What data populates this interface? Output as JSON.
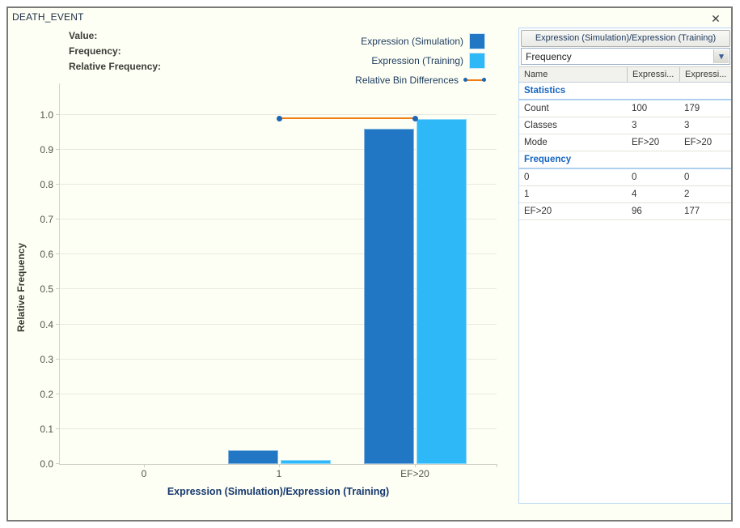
{
  "window": {
    "title": "DEATH_EVENT"
  },
  "icons": {
    "close": "✕",
    "chevron_down": "▾"
  },
  "tooltip_labels": {
    "value": "Value:",
    "frequency": "Frequency:",
    "relative_frequency": "Relative Frequency:"
  },
  "legend": [
    {
      "label": "Expression (Simulation)",
      "type": "box"
    },
    {
      "label": "Expression (Training)",
      "type": "box"
    },
    {
      "label": "Relative Bin Differences",
      "type": "line"
    }
  ],
  "colors": {
    "simulation": "#2177c3",
    "training": "#2fb8f7",
    "difference_line": "#f07c12",
    "difference_marker": "#1e66b4",
    "section_header_text": "#1565c0",
    "panel_border": "#b9d7f3",
    "axis_title": "#16386e"
  },
  "chart_data": {
    "type": "bar",
    "title": "DEATH_EVENT",
    "categories": [
      "0",
      "1",
      "EF>20"
    ],
    "series": [
      {
        "name": "Expression (Simulation)",
        "color": "#2177c3",
        "values": [
          0,
          0.04,
          0.96
        ]
      },
      {
        "name": "Expression (Training)",
        "color": "#2fb8f7",
        "values": [
          0,
          0.011,
          0.989
        ]
      }
    ],
    "line_series": {
      "name": "Relative Bin Differences",
      "color": "#f07c12",
      "marker_color": "#1e66b4",
      "values": [
        null,
        0.99,
        0.99
      ]
    },
    "xlabel": "Expression (Simulation)/Expression (Training)",
    "ylabel": "Relative Frequency",
    "ylim": [
      0,
      1.09
    ],
    "yticks": [
      0.0,
      0.1,
      0.2,
      0.3,
      0.4,
      0.5,
      0.6,
      0.7,
      0.8,
      0.9,
      1.0
    ],
    "grid": true,
    "legend_position": "top-right"
  },
  "panel": {
    "header": "Expression (Simulation)/Expression (Training)",
    "dropdown_value": "Frequency",
    "table": {
      "columns": [
        "Name",
        "Expressi...",
        "Expressi..."
      ],
      "sections": [
        {
          "title": "Statistics",
          "rows": [
            [
              "Count",
              "100",
              "179"
            ],
            [
              "Classes",
              "3",
              "3"
            ],
            [
              "Mode",
              "EF>20",
              "EF>20"
            ]
          ]
        },
        {
          "title": "Frequency",
          "rows": [
            [
              "0",
              "0",
              "0"
            ],
            [
              "1",
              "4",
              "2"
            ],
            [
              "EF>20",
              "96",
              "177"
            ]
          ]
        }
      ]
    }
  }
}
